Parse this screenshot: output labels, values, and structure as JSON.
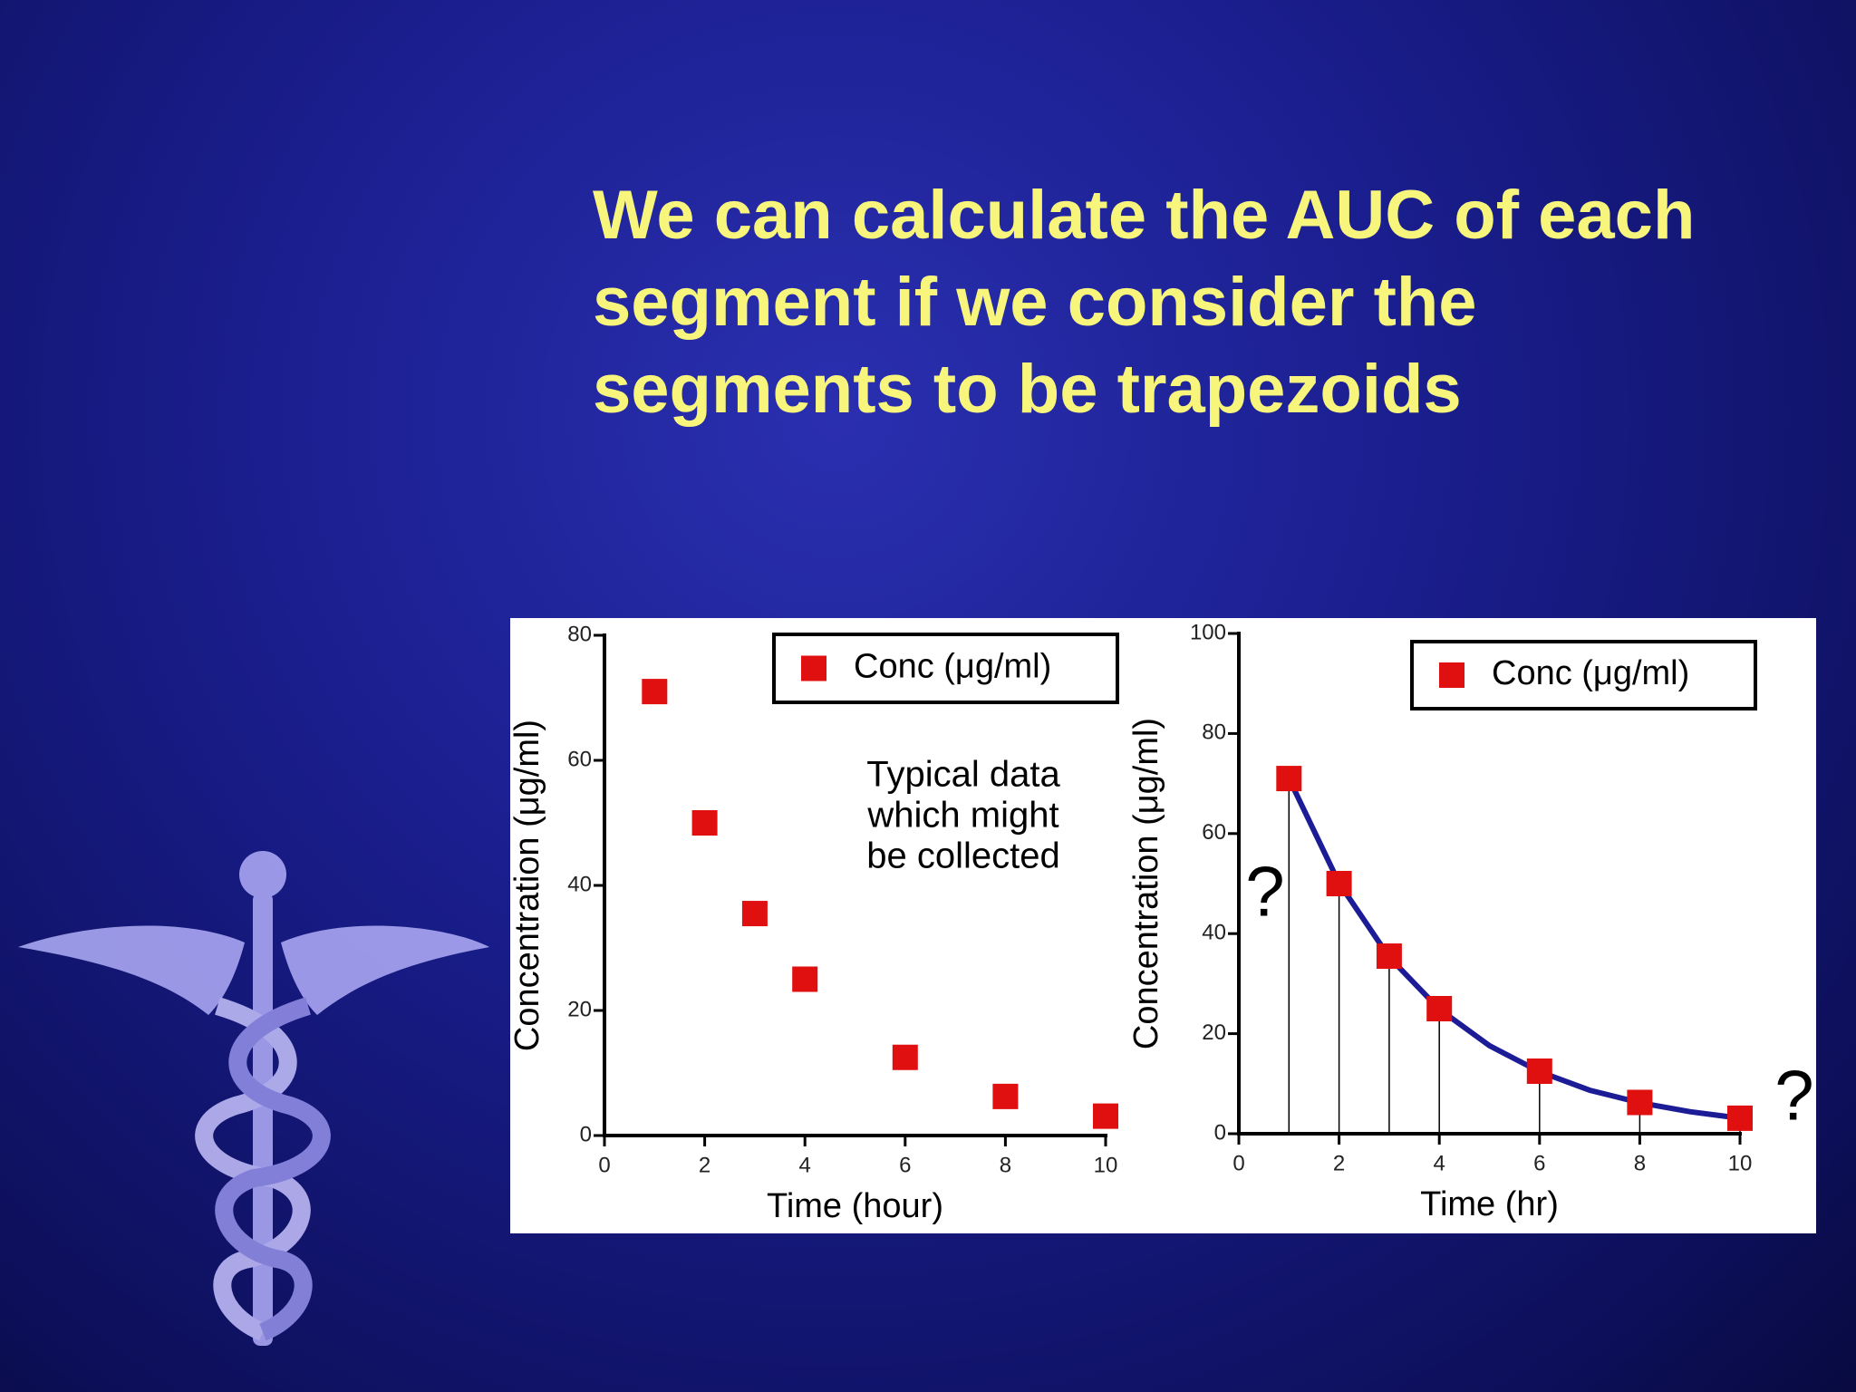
{
  "slide": {
    "title": "We can calculate the AUC of each segment if we consider the segments to be trapezoids"
  },
  "chart_data": [
    {
      "type": "scatter",
      "x_label": "Time (hour)",
      "y_label": "Concentration (μg/ml)",
      "xlim": [
        0,
        10
      ],
      "xticks": [
        0,
        2,
        4,
        6,
        8,
        10
      ],
      "ylim": [
        0,
        80
      ],
      "yticks": [
        0,
        20,
        40,
        60,
        80
      ],
      "legend": "top-right",
      "series": [
        {
          "name": "Conc (μg/ml)",
          "color": "#e01010",
          "x": [
            1,
            2,
            3,
            4,
            6,
            8,
            10
          ],
          "values": [
            71,
            50,
            35.5,
            25,
            12.5,
            6.25,
            3.1
          ]
        }
      ],
      "annotation": [
        "Typical data",
        "which might",
        "be collected"
      ]
    },
    {
      "type": "scatter",
      "x_label": "Time (hr)",
      "y_label": "Concentration (μg/ml)",
      "xlim": [
        0,
        10
      ],
      "xticks": [
        0,
        2,
        4,
        6,
        8,
        10
      ],
      "ylim": [
        0,
        100
      ],
      "yticks": [
        0,
        20,
        40,
        60,
        80,
        100
      ],
      "legend": "top-right",
      "drop_lines": true,
      "series": [
        {
          "name": "Conc (μg/ml)",
          "color": "#e01010",
          "x": [
            1,
            2,
            3,
            4,
            6,
            8,
            10
          ],
          "values": [
            71,
            50,
            35.5,
            25,
            12.5,
            6.25,
            3.1
          ]
        }
      ],
      "fit": {
        "color": "#1c1c96",
        "x": [
          1,
          2,
          3,
          4,
          5,
          6,
          7,
          8,
          9,
          10
        ],
        "values": [
          71,
          50.1,
          35.3,
          24.9,
          17.6,
          12.4,
          8.7,
          6.2,
          4.4,
          3.1
        ]
      },
      "annotations": [
        "?",
        "?"
      ]
    }
  ]
}
